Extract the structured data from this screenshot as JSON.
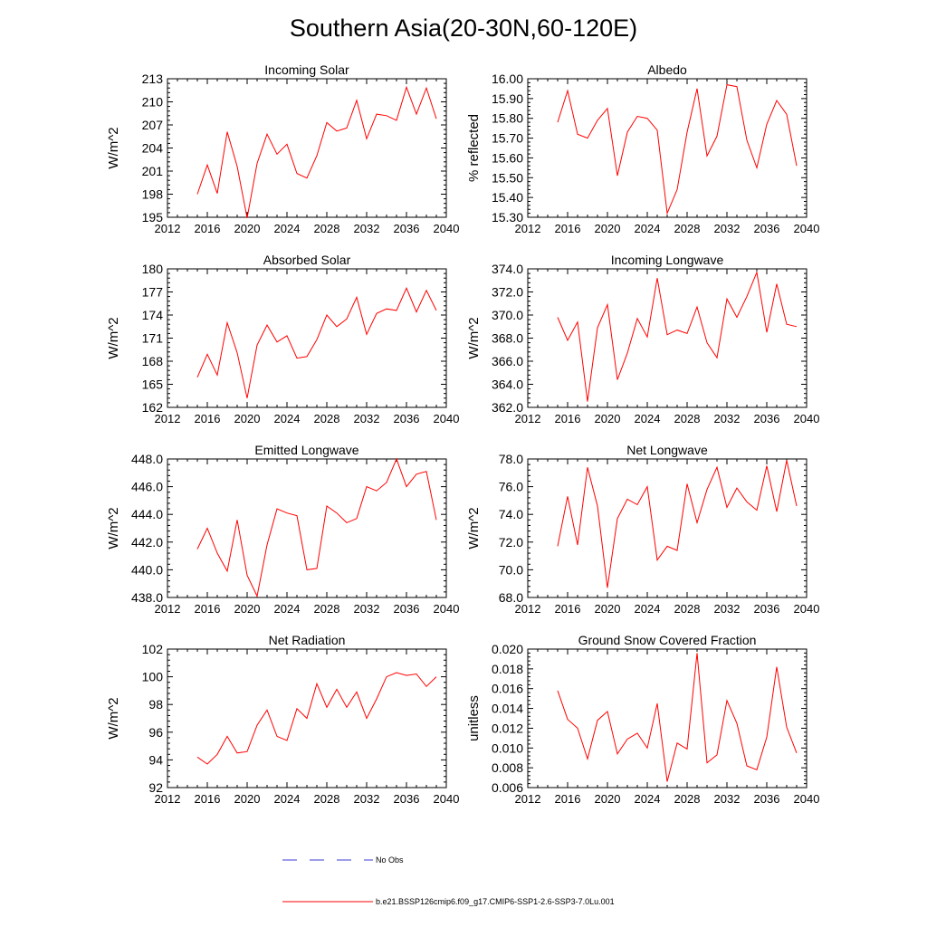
{
  "figure": {
    "title": "Southern Asia(20-30N,60-120E)"
  },
  "colors": {
    "series": "#ff0000",
    "obs": "#3b3bd6",
    "axis": "#000000"
  },
  "legend": {
    "placement": "bottom-center",
    "entries": [
      {
        "label": "No Obs",
        "color": "#3b3bd6",
        "style": "dashed"
      },
      {
        "label": "b.e21.BSSP126cmip6.f09_g17.CMIP6-SSP1-2.6-SSP3-7.0Lu.001",
        "color": "#ff0000",
        "style": "solid"
      }
    ]
  },
  "chart_data": [
    {
      "type": "line",
      "title": "Incoming Solar",
      "ylabel": "W/m^2",
      "xlim": [
        2012,
        2040
      ],
      "ylim": [
        195,
        213
      ],
      "xticks": [
        2012,
        2016,
        2020,
        2024,
        2028,
        2032,
        2036,
        2040
      ],
      "yticks": [
        "195",
        "198",
        "201",
        "204",
        "207",
        "210",
        "213"
      ],
      "grid": false,
      "x": [
        2015,
        2016,
        2017,
        2018,
        2019,
        2020,
        2021,
        2022,
        2023,
        2024,
        2025,
        2026,
        2027,
        2028,
        2029,
        2030,
        2031,
        2032,
        2033,
        2034,
        2035,
        2036,
        2037,
        2038,
        2039
      ],
      "series": [
        {
          "values": [
            198.0,
            201.8,
            198.1,
            206.1,
            201.6,
            194.9,
            202.0,
            205.8,
            203.2,
            204.5,
            200.7,
            200.1,
            203.0,
            207.3,
            206.2,
            206.6,
            210.2,
            205.2,
            208.4,
            208.2,
            207.6,
            211.9,
            208.4,
            211.8,
            207.8
          ]
        }
      ]
    },
    {
      "type": "line",
      "title": "Albedo",
      "ylabel": "% reflected",
      "xlim": [
        2012,
        2040
      ],
      "ylim": [
        15.3,
        16.0
      ],
      "xticks": [
        2012,
        2016,
        2020,
        2024,
        2028,
        2032,
        2036,
        2040
      ],
      "yticks": [
        "15.30",
        "15.40",
        "15.50",
        "15.60",
        "15.70",
        "15.80",
        "15.90",
        "16.00"
      ],
      "grid": false,
      "x": [
        2015,
        2016,
        2017,
        2018,
        2019,
        2020,
        2021,
        2022,
        2023,
        2024,
        2025,
        2026,
        2027,
        2028,
        2029,
        2030,
        2031,
        2032,
        2033,
        2034,
        2035,
        2036,
        2037,
        2038,
        2039
      ],
      "series": [
        {
          "values": [
            15.78,
            15.94,
            15.72,
            15.7,
            15.79,
            15.85,
            15.51,
            15.73,
            15.81,
            15.8,
            15.74,
            15.32,
            15.44,
            15.73,
            15.95,
            15.61,
            15.71,
            15.97,
            15.96,
            15.69,
            15.55,
            15.77,
            15.89,
            15.82,
            15.56
          ]
        }
      ]
    },
    {
      "type": "line",
      "title": "Absorbed Solar",
      "ylabel": "W/m^2",
      "xlim": [
        2012,
        2040
      ],
      "ylim": [
        162,
        180
      ],
      "xticks": [
        2012,
        2016,
        2020,
        2024,
        2028,
        2032,
        2036,
        2040
      ],
      "yticks": [
        "162",
        "165",
        "168",
        "171",
        "174",
        "177",
        "180"
      ],
      "grid": false,
      "x": [
        2015,
        2016,
        2017,
        2018,
        2019,
        2020,
        2021,
        2022,
        2023,
        2024,
        2025,
        2026,
        2027,
        2028,
        2029,
        2030,
        2031,
        2032,
        2033,
        2034,
        2035,
        2036,
        2037,
        2038,
        2039
      ],
      "series": [
        {
          "values": [
            165.9,
            168.9,
            166.2,
            173.0,
            169.1,
            163.2,
            170.1,
            172.7,
            170.5,
            171.3,
            168.4,
            168.6,
            170.8,
            174.0,
            172.5,
            173.5,
            176.3,
            171.5,
            174.2,
            174.8,
            174.6,
            177.5,
            174.4,
            177.2,
            174.6
          ]
        }
      ]
    },
    {
      "type": "line",
      "title": "Incoming Longwave",
      "ylabel": "W/m^2",
      "xlim": [
        2012,
        2040
      ],
      "ylim": [
        362,
        374
      ],
      "xticks": [
        2012,
        2016,
        2020,
        2024,
        2028,
        2032,
        2036,
        2040
      ],
      "yticks": [
        "362.0",
        "364.0",
        "366.0",
        "368.0",
        "370.0",
        "372.0",
        "374.0"
      ],
      "grid": false,
      "x": [
        2015,
        2016,
        2017,
        2018,
        2019,
        2020,
        2021,
        2022,
        2023,
        2024,
        2025,
        2026,
        2027,
        2028,
        2029,
        2030,
        2031,
        2032,
        2033,
        2034,
        2035,
        2036,
        2037,
        2038,
        2039
      ],
      "series": [
        {
          "values": [
            369.8,
            367.8,
            369.4,
            362.5,
            368.9,
            370.9,
            364.4,
            366.7,
            369.7,
            368.1,
            373.2,
            368.3,
            368.7,
            368.4,
            370.7,
            367.6,
            366.3,
            371.4,
            369.8,
            371.6,
            373.7,
            368.5,
            372.7,
            369.2,
            369.0
          ]
        }
      ]
    },
    {
      "type": "line",
      "title": "Emitted Longwave",
      "ylabel": "W/m^2",
      "xlim": [
        2012,
        2040
      ],
      "ylim": [
        438,
        448
      ],
      "xticks": [
        2012,
        2016,
        2020,
        2024,
        2028,
        2032,
        2036,
        2040
      ],
      "yticks": [
        "438.0",
        "440.0",
        "442.0",
        "444.0",
        "446.0",
        "448.0"
      ],
      "grid": false,
      "x": [
        2015,
        2016,
        2017,
        2018,
        2019,
        2020,
        2021,
        2022,
        2023,
        2024,
        2025,
        2026,
        2027,
        2028,
        2029,
        2030,
        2031,
        2032,
        2033,
        2034,
        2035,
        2036,
        2037,
        2038,
        2039
      ],
      "series": [
        {
          "values": [
            441.5,
            443.0,
            441.2,
            439.9,
            443.6,
            439.6,
            438.1,
            441.8,
            444.4,
            444.1,
            443.9,
            440.0,
            440.1,
            444.6,
            444.1,
            443.4,
            443.7,
            446.0,
            445.7,
            446.3,
            448.0,
            446.0,
            446.9,
            447.1,
            443.6
          ]
        }
      ]
    },
    {
      "type": "line",
      "title": "Net Longwave",
      "ylabel": "W/m^2",
      "xlim": [
        2012,
        2040
      ],
      "ylim": [
        68,
        78
      ],
      "xticks": [
        2012,
        2016,
        2020,
        2024,
        2028,
        2032,
        2036,
        2040
      ],
      "yticks": [
        "68.0",
        "70.0",
        "72.0",
        "74.0",
        "76.0",
        "78.0"
      ],
      "grid": false,
      "x": [
        2015,
        2016,
        2017,
        2018,
        2019,
        2020,
        2021,
        2022,
        2023,
        2024,
        2025,
        2026,
        2027,
        2028,
        2029,
        2030,
        2031,
        2032,
        2033,
        2034,
        2035,
        2036,
        2037,
        2038,
        2039
      ],
      "series": [
        {
          "values": [
            71.7,
            75.3,
            71.8,
            77.4,
            74.6,
            68.7,
            73.7,
            75.1,
            74.7,
            76.0,
            70.7,
            71.7,
            71.4,
            76.2,
            73.4,
            75.8,
            77.4,
            74.5,
            75.9,
            74.9,
            74.3,
            77.5,
            74.2,
            77.9,
            74.6
          ]
        }
      ]
    },
    {
      "type": "line",
      "title": "Net Radiation",
      "ylabel": "W/m^2",
      "xlim": [
        2012,
        2040
      ],
      "ylim": [
        92,
        102
      ],
      "xticks": [
        2012,
        2016,
        2020,
        2024,
        2028,
        2032,
        2036,
        2040
      ],
      "yticks": [
        "92",
        "94",
        "96",
        "98",
        "100",
        "102"
      ],
      "grid": false,
      "x": [
        2015,
        2016,
        2017,
        2018,
        2019,
        2020,
        2021,
        2022,
        2023,
        2024,
        2025,
        2026,
        2027,
        2028,
        2029,
        2030,
        2031,
        2032,
        2033,
        2034,
        2035,
        2036,
        2037,
        2038,
        2039
      ],
      "series": [
        {
          "values": [
            94.2,
            93.7,
            94.4,
            95.7,
            94.5,
            94.6,
            96.5,
            97.6,
            95.7,
            95.4,
            97.7,
            97.0,
            99.5,
            97.8,
            99.1,
            97.8,
            98.9,
            97.0,
            98.4,
            100.0,
            100.3,
            100.1,
            100.2,
            99.3,
            100.0
          ]
        }
      ]
    },
    {
      "type": "line",
      "title": "Ground Snow Covered Fraction",
      "ylabel": "unitless",
      "xlim": [
        2012,
        2040
      ],
      "ylim": [
        0.006,
        0.02
      ],
      "xticks": [
        2012,
        2016,
        2020,
        2024,
        2028,
        2032,
        2036,
        2040
      ],
      "yticks": [
        "0.006",
        "0.008",
        "0.010",
        "0.012",
        "0.014",
        "0.016",
        "0.018",
        "0.020"
      ],
      "grid": false,
      "x": [
        2015,
        2016,
        2017,
        2018,
        2019,
        2020,
        2021,
        2022,
        2023,
        2024,
        2025,
        2026,
        2027,
        2028,
        2029,
        2030,
        2031,
        2032,
        2033,
        2034,
        2035,
        2036,
        2037,
        2038,
        2039
      ],
      "series": [
        {
          "values": [
            0.0158,
            0.0129,
            0.012,
            0.0089,
            0.0128,
            0.0137,
            0.0094,
            0.0109,
            0.0115,
            0.01,
            0.0145,
            0.0066,
            0.0105,
            0.0099,
            0.0196,
            0.0085,
            0.0093,
            0.0148,
            0.0125,
            0.0082,
            0.0078,
            0.0111,
            0.0182,
            0.0121,
            0.0095
          ]
        }
      ]
    }
  ]
}
